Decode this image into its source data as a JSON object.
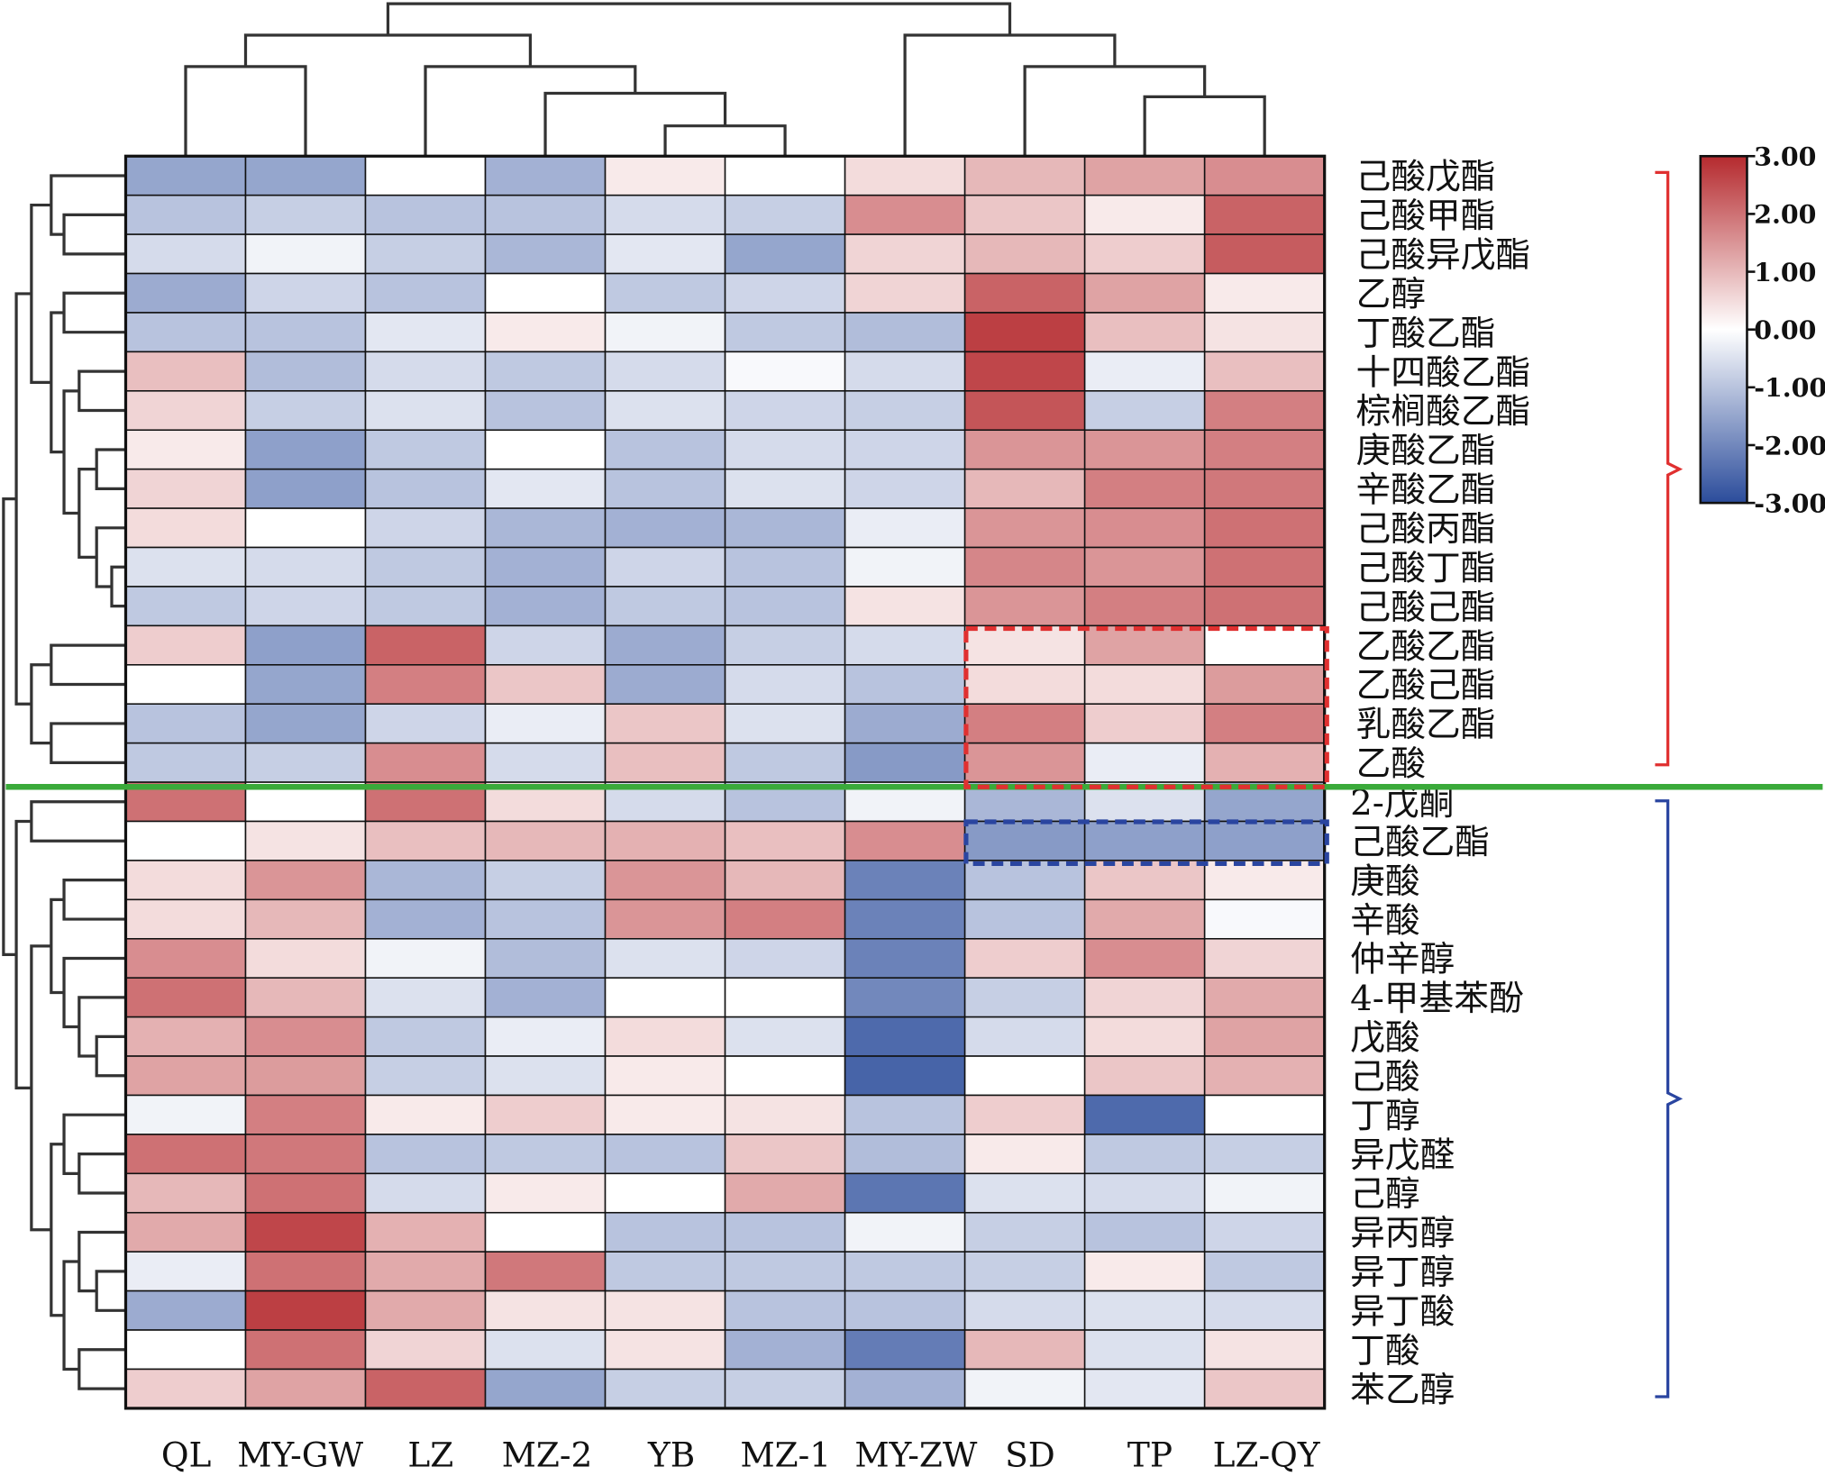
{
  "chart_data": {
    "type": "heatmap",
    "title": "",
    "columns": [
      "QL",
      "MY-GW",
      "LZ",
      "MZ-2",
      "YB",
      "MZ-1",
      "MY-ZW",
      "SD",
      "TP",
      "LZ-QY"
    ],
    "rows": [
      "己酸戊酯",
      "己酸甲酯",
      "己酸异戊酯",
      "乙醇",
      "丁酸乙酯",
      "十四酸乙酯",
      "棕榈酸乙酯",
      "庚酸乙酯",
      "辛酸乙酯",
      "己酸丙酯",
      "己酸丁酯",
      "己酸己酯",
      "乙酸乙酯",
      "乙酸己酯",
      "乳酸乙酯",
      "乙酸",
      "2-戊酮",
      "己酸乙酯",
      "庚酸",
      "辛酸",
      "仲辛醇",
      "4-甲基苯酚",
      "戊酸",
      "己酸",
      "丁醇",
      "异戊醛",
      "己醇",
      "异丙醇",
      "异丁醇",
      "异丁酸",
      "丁酸",
      "苯乙醇"
    ],
    "values": [
      [
        -1.5,
        -1.5,
        0,
        -1.3,
        0.3,
        0,
        0.5,
        1,
        1.3,
        1.6
      ],
      [
        -1,
        -0.8,
        -1,
        -1,
        -0.6,
        -0.8,
        1.6,
        0.8,
        0.3,
        2.2
      ],
      [
        -0.6,
        -0.2,
        -0.8,
        -1.2,
        -0.4,
        -1.5,
        0.6,
        1,
        0.7,
        2.3
      ],
      [
        -1.4,
        -0.7,
        -1,
        0,
        -0.9,
        -0.7,
        0.6,
        2.2,
        1.3,
        0.3
      ],
      [
        -1,
        -1,
        -0.4,
        0.3,
        -0.2,
        -0.9,
        -1.1,
        2.7,
        0.9,
        0.4
      ],
      [
        0.9,
        -1.1,
        -0.6,
        -0.9,
        -0.6,
        -0.1,
        -0.6,
        2.6,
        -0.3,
        0.9
      ],
      [
        0.6,
        -0.8,
        -0.5,
        -1,
        -0.5,
        -0.7,
        -0.8,
        2.4,
        -0.8,
        1.8
      ],
      [
        0.3,
        -1.6,
        -0.9,
        0,
        -1,
        -0.6,
        -0.7,
        1.5,
        1.5,
        1.8
      ],
      [
        0.6,
        -1.6,
        -1,
        -0.4,
        -1,
        -0.5,
        -0.7,
        1,
        1.8,
        1.9
      ],
      [
        0.5,
        0,
        -0.7,
        -1.2,
        -1.3,
        -1.2,
        -0.3,
        1.5,
        1.6,
        2
      ],
      [
        -0.5,
        -0.6,
        -0.9,
        -1.3,
        -0.7,
        -1,
        -0.2,
        1.7,
        1.5,
        2
      ],
      [
        -0.9,
        -0.7,
        -0.9,
        -1.3,
        -0.9,
        -1,
        0.4,
        1.5,
        1.8,
        2
      ],
      [
        0.7,
        -1.6,
        2.2,
        -0.7,
        -1.4,
        -0.8,
        -0.6,
        0.4,
        1.3,
        0
      ],
      [
        0,
        -1.5,
        1.8,
        0.8,
        -1.4,
        -0.6,
        -1,
        0.5,
        0.5,
        1.4
      ],
      [
        -1,
        -1.5,
        -0.7,
        -0.3,
        0.8,
        -0.5,
        -1.4,
        1.8,
        0.7,
        1.8
      ],
      [
        -0.9,
        -0.8,
        1.6,
        -0.6,
        0.9,
        -0.9,
        -1.7,
        1.5,
        -0.3,
        1.1
      ],
      [
        2,
        0,
        2,
        0.5,
        -0.6,
        -1,
        -0.2,
        -1.2,
        -0.5,
        -1.5
      ],
      [
        0,
        0.4,
        0.9,
        1,
        1.1,
        0.9,
        1.6,
        -1.7,
        -1.6,
        -1.6
      ],
      [
        0.5,
        1.5,
        -1.2,
        -0.8,
        1.5,
        1,
        -2.1,
        -1,
        0.8,
        0.3
      ],
      [
        0.5,
        1,
        -1.3,
        -1,
        1.5,
        1.8,
        -2.1,
        -1,
        1.2,
        -0.1
      ],
      [
        1.6,
        0.5,
        -0.2,
        -1.1,
        -0.5,
        -0.7,
        -2.1,
        0.7,
        1.6,
        0.6
      ],
      [
        2,
        1,
        -0.5,
        -1.3,
        0,
        0,
        -2,
        -0.8,
        0.6,
        1.2
      ],
      [
        1.1,
        1.6,
        -0.9,
        -0.3,
        0.5,
        -0.5,
        -2.5,
        -0.6,
        0.5,
        1.3
      ],
      [
        1.3,
        1.4,
        -0.8,
        -0.5,
        0.3,
        0,
        -2.6,
        0,
        0.8,
        1.1
      ],
      [
        -0.2,
        1.8,
        0.3,
        0.7,
        0.3,
        0.4,
        -1,
        0.7,
        -2.5,
        0
      ],
      [
        2,
        1.9,
        -1,
        -0.9,
        -1,
        0.8,
        -1.1,
        0.3,
        -0.9,
        -0.8
      ],
      [
        1,
        2,
        -0.6,
        0.3,
        0,
        1.2,
        -2.3,
        -0.5,
        -0.6,
        -0.2
      ],
      [
        1.2,
        2.6,
        1.1,
        0,
        -1,
        -1,
        -0.2,
        -0.8,
        -1,
        -0.7
      ],
      [
        -0.3,
        2,
        1.2,
        1.9,
        -0.9,
        -0.9,
        -0.9,
        -0.8,
        0.3,
        -0.9
      ],
      [
        -1.4,
        2.7,
        1.2,
        0.4,
        0.4,
        -1,
        -1,
        -0.6,
        -0.5,
        -0.6
      ],
      [
        0,
        2,
        0.6,
        -0.5,
        0.4,
        -1.3,
        -2.2,
        1,
        -0.5,
        0.4
      ],
      [
        0.7,
        1.3,
        2.2,
        -1.5,
        -0.8,
        -0.8,
        -1.3,
        -0.2,
        -0.4,
        0.8
      ]
    ],
    "colorbar": {
      "range": [
        -3,
        3
      ],
      "ticks": [
        "3.00",
        "2.00",
        "1.00",
        "0.00",
        "-1.00",
        "-2.00",
        "-3.00"
      ],
      "low_color": "#2b4c9b",
      "mid_color": "#ffffff",
      "high_color": "#b52a2e"
    },
    "group_colors": {
      "upper": "#e03030",
      "lower": "#2a45a0",
      "divider": "#3aaa3a"
    }
  }
}
